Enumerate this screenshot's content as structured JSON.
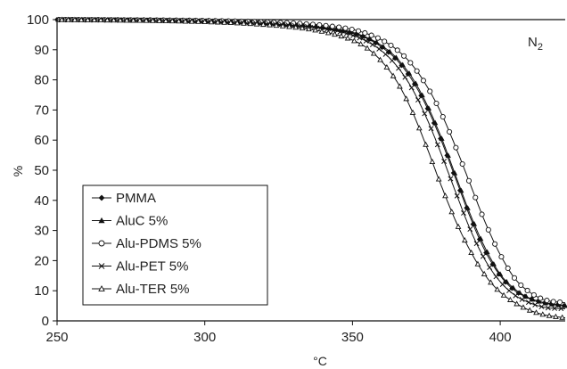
{
  "chart_data": {
    "type": "line",
    "title": "",
    "xlabel": "°C",
    "ylabel": "%",
    "xlim": [
      250,
      422
    ],
    "ylim": [
      0,
      100
    ],
    "x_ticks": [
      250,
      300,
      350,
      400
    ],
    "y_ticks": [
      0,
      10,
      20,
      30,
      40,
      50,
      60,
      70,
      80,
      90,
      100
    ],
    "grid": false,
    "legend_position": "lower-left",
    "annotation": "N2",
    "annotation_main": "N",
    "annotation_sub": "2",
    "series": [
      {
        "name": "PMMA",
        "marker": "filled-diamond",
        "x": [
          250,
          270,
          290,
          310,
          330,
          340,
          350,
          355,
          360,
          365,
          370,
          375,
          380,
          385,
          390,
          395,
          400,
          405,
          410,
          415,
          422
        ],
        "y": [
          100,
          99.9,
          99.7,
          99.3,
          98.3,
          97.4,
          95.5,
          93.7,
          90.8,
          86.6,
          80.2,
          71.3,
          60,
          47,
          34,
          23,
          15,
          10,
          7.5,
          6,
          5
        ]
      },
      {
        "name": "AluC 5%",
        "marker": "filled-triangle",
        "x": [
          250,
          270,
          290,
          310,
          330,
          340,
          350,
          355,
          360,
          365,
          370,
          375,
          380,
          385,
          390,
          395,
          400,
          405,
          410,
          415,
          422
        ],
        "y": [
          100,
          99.9,
          99.7,
          99.3,
          98.4,
          97.6,
          95.8,
          94,
          91.3,
          87.2,
          81,
          72.2,
          61,
          48,
          35,
          24,
          15.5,
          10.5,
          7.5,
          6,
          5
        ]
      },
      {
        "name": "Alu-PDMS 5%",
        "marker": "open-circle",
        "x": [
          250,
          270,
          290,
          310,
          330,
          340,
          350,
          355,
          360,
          365,
          370,
          375,
          380,
          385,
          390,
          395,
          400,
          405,
          410,
          415,
          422
        ],
        "y": [
          100,
          99.9,
          99.8,
          99.5,
          98.8,
          98.1,
          96.7,
          95.3,
          93.2,
          90,
          85.2,
          78.2,
          69,
          57.5,
          45,
          32.5,
          22,
          14,
          9.5,
          7,
          6
        ]
      },
      {
        "name": "Alu-PET 5%",
        "marker": "cross",
        "x": [
          250,
          270,
          290,
          310,
          330,
          340,
          350,
          355,
          360,
          365,
          370,
          375,
          380,
          385,
          390,
          395,
          400,
          405,
          410,
          415,
          422
        ],
        "y": [
          100,
          99.9,
          99.7,
          99.2,
          98.1,
          97,
          94.8,
          92.7,
          89.5,
          84.6,
          77.4,
          67.5,
          55.5,
          42.5,
          30,
          20,
          13,
          8.5,
          6,
          4.5,
          4
        ]
      },
      {
        "name": "Alu-TER 5%",
        "marker": "open-triangle",
        "x": [
          250,
          270,
          290,
          310,
          330,
          340,
          350,
          355,
          360,
          365,
          370,
          375,
          380,
          385,
          390,
          395,
          400,
          405,
          410,
          415,
          422
        ],
        "y": [
          100,
          99.8,
          99.5,
          98.9,
          97.5,
          96,
          93.2,
          90.5,
          86,
          79.5,
          70,
          58,
          45,
          33,
          23,
          15,
          9.5,
          6,
          3.5,
          2,
          1
        ]
      }
    ]
  }
}
